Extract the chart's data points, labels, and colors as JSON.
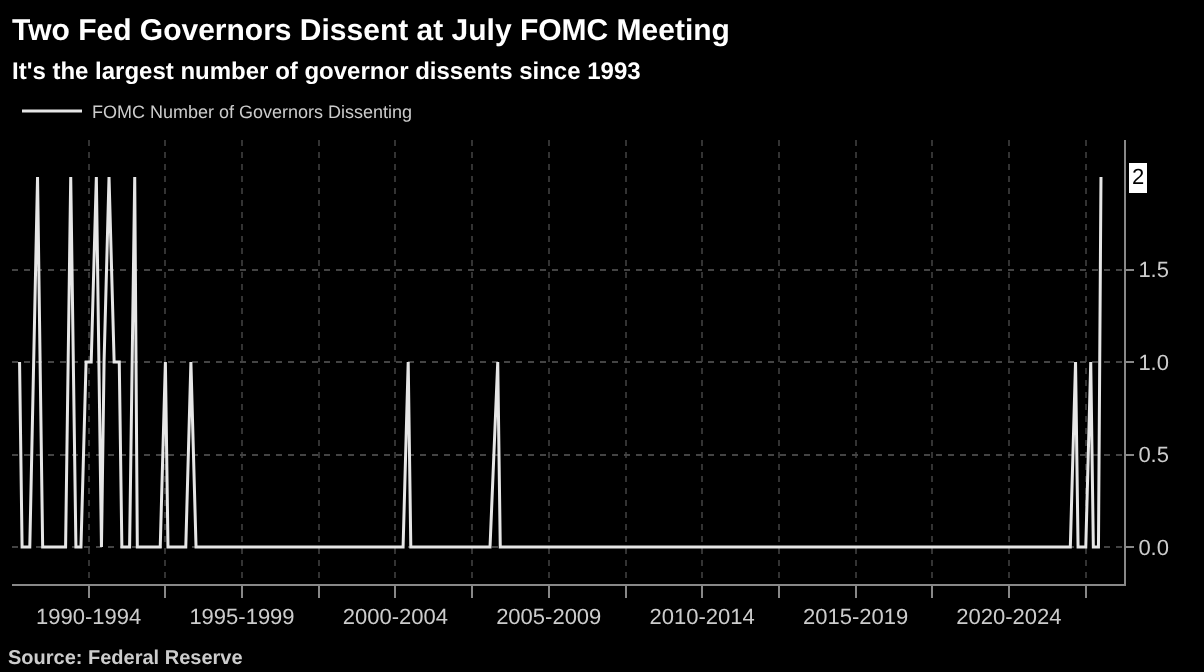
{
  "chart_data": {
    "type": "line",
    "title": "Two Fed Governors Dissent at July FOMC Meeting",
    "subtitle": "It's the largest number of governor dissents since 1993",
    "x": [
      "1990-04",
      "1990-05",
      "1990-08",
      "1990-11",
      "1991-01",
      "1991-10",
      "1991-12",
      "1992-02",
      "1992-04",
      "1992-06",
      "1992-08",
      "1992-10",
      "1992-12",
      "1993-01",
      "1993-03",
      "1993-05",
      "1993-07",
      "1993-08",
      "1993-11",
      "1994-01",
      "1994-02",
      "1994-11",
      "1995-01",
      "1995-02",
      "1995-09",
      "1995-11",
      "1996-01",
      "2002-10",
      "2002-12",
      "2003-01",
      "2005-08",
      "2005-11",
      "2005-12",
      "2024-07",
      "2024-09",
      "2024-10",
      "2025-01",
      "2025-03",
      "2025-04",
      "2025-06",
      "2025-07"
    ],
    "series": [
      {
        "name": "FOMC Number of Governors Dissenting",
        "color": "#e6e6e6",
        "values": [
          1,
          0,
          0,
          2,
          0,
          0,
          2,
          0,
          0,
          1,
          1,
          2,
          0,
          1,
          2,
          1,
          1,
          0,
          0,
          2,
          0,
          0,
          1,
          0,
          0,
          1,
          0,
          0,
          1,
          0,
          0,
          1,
          0,
          0,
          1,
          0,
          0,
          1,
          0,
          0,
          2
        ]
      }
    ],
    "xlim": [
      "1990-01",
      "2026-04"
    ],
    "xticks": [
      {
        "value": "1992-07",
        "label": "1990-1994"
      },
      {
        "value": "1995-01",
        "label": null
      },
      {
        "value": "1997-07",
        "label": "1995-1999"
      },
      {
        "value": "2000-01",
        "label": null
      },
      {
        "value": "2002-07",
        "label": "2000-2004"
      },
      {
        "value": "2005-01",
        "label": null
      },
      {
        "value": "2007-07",
        "label": "2005-2009"
      },
      {
        "value": "2010-01",
        "label": null
      },
      {
        "value": "2012-07",
        "label": "2010-2014"
      },
      {
        "value": "2015-01",
        "label": null
      },
      {
        "value": "2017-07",
        "label": "2015-2019"
      },
      {
        "value": "2020-01",
        "label": null
      },
      {
        "value": "2022-07",
        "label": "2020-2024"
      },
      {
        "value": "2025-01",
        "label": null
      }
    ],
    "ylim": [
      -0.2,
      2.2
    ],
    "yticks": [
      {
        "value": 0,
        "label": "0.0"
      },
      {
        "value": 0.5,
        "label": "0.5"
      },
      {
        "value": 1,
        "label": "1.0"
      },
      {
        "value": 1.5,
        "label": "1.5"
      }
    ],
    "grid": true,
    "legend": "top left",
    "marker": "none",
    "line_style": "solid",
    "annotations": [
      {
        "text": "2",
        "x": "2025-07",
        "y": 2
      },
      "Source: Federal Reserve"
    ]
  }
}
